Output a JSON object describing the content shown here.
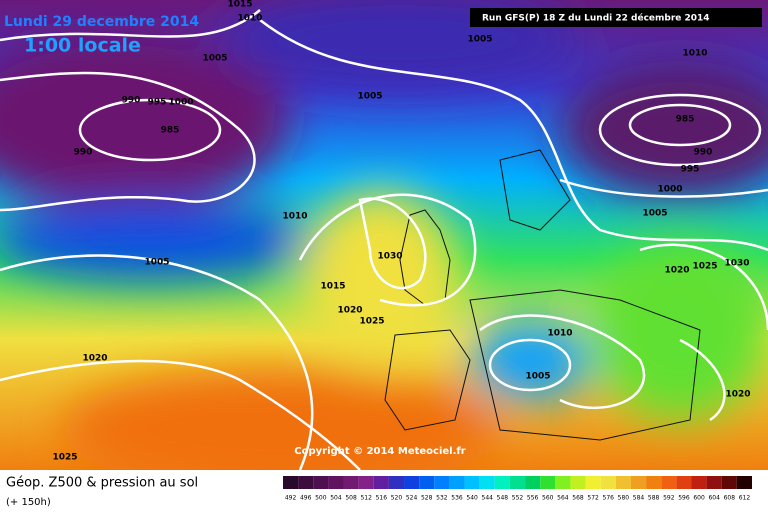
{
  "header": {
    "date": "Lundi 29 decembre 2014",
    "time": "1:00 locale",
    "run": "Run GFS(P) 18 Z du Lundi 22 décembre 2014"
  },
  "isobar_labels": [
    "1015",
    "1010",
    "1005",
    "1010",
    "1005",
    "1005",
    "990",
    "995",
    "1000",
    "985",
    "985",
    "990",
    "990",
    "995",
    "1000",
    "1010",
    "1005",
    "1030",
    "1005",
    "1020",
    "1025",
    "1030",
    "1015",
    "1020",
    "1025",
    "1010",
    "1020",
    "1005",
    "1020",
    "1025"
  ],
  "copyright": "Copyright © 2014 Meteociel.fr",
  "legend": {
    "title": "Géop. Z500 & pression au sol",
    "lead": "(+ 150h)",
    "scale": [
      {
        "value": 492,
        "color": "#2a0a2a"
      },
      {
        "value": 496,
        "color": "#3c0c3c"
      },
      {
        "value": 500,
        "color": "#4e1050"
      },
      {
        "value": 504,
        "color": "#601460"
      },
      {
        "value": 508,
        "color": "#721a72"
      },
      {
        "value": 512,
        "color": "#84208a"
      },
      {
        "value": 516,
        "color": "#6020a0"
      },
      {
        "value": 520,
        "color": "#3030c0"
      },
      {
        "value": 524,
        "color": "#1040e0"
      },
      {
        "value": 528,
        "color": "#0060f0"
      },
      {
        "value": 532,
        "color": "#0080ff"
      },
      {
        "value": 536,
        "color": "#00a0ff"
      },
      {
        "value": 540,
        "color": "#00c0ff"
      },
      {
        "value": 544,
        "color": "#00e0f0"
      },
      {
        "value": 548,
        "color": "#00f0c0"
      },
      {
        "value": 552,
        "color": "#00e090"
      },
      {
        "value": 556,
        "color": "#00d060"
      },
      {
        "value": 560,
        "color": "#30e030"
      },
      {
        "value": 564,
        "color": "#80f020"
      },
      {
        "value": 568,
        "color": "#c0f020"
      },
      {
        "value": 572,
        "color": "#f0f030"
      },
      {
        "value": 576,
        "color": "#f0e040"
      },
      {
        "value": 580,
        "color": "#f0c030"
      },
      {
        "value": 584,
        "color": "#f0a020"
      },
      {
        "value": 588,
        "color": "#f08010"
      },
      {
        "value": 592,
        "color": "#f06010"
      },
      {
        "value": 596,
        "color": "#e04010"
      },
      {
        "value": 600,
        "color": "#c02010"
      },
      {
        "value": 604,
        "color": "#901010"
      },
      {
        "value": 608,
        "color": "#600808"
      },
      {
        "value": 612,
        "color": "#200000"
      }
    ]
  }
}
